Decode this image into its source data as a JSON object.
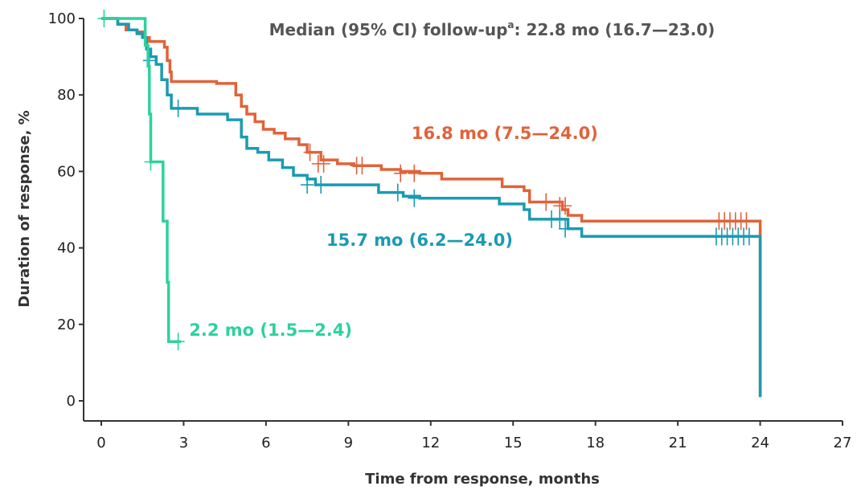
{
  "colors": {
    "background": "#ffffff",
    "axis": "#333333",
    "series_orange": "#e0633a",
    "series_teal": "#1a9bb2",
    "series_green": "#2ed19e",
    "note_text": "#555555"
  },
  "chart_data": {
    "type": "line",
    "step": true,
    "xlabel": "Time from response, months",
    "ylabel": "Duration of response, %",
    "xlim": [
      0,
      27
    ],
    "ylim": [
      0,
      100
    ],
    "x_ticks": [
      "0",
      "3",
      "6",
      "9",
      "12",
      "15",
      "18",
      "21",
      "24",
      "27"
    ],
    "y_ticks": [
      "0",
      "20",
      "40",
      "60",
      "80",
      "100"
    ],
    "grid": false,
    "note": {
      "prefix": "Median (95% CI) follow-up",
      "superscript": "a",
      "suffix": ": 22.8 mo (16.7—23.0)"
    },
    "annotations": [
      {
        "text": "16.8 mo (7.5—24.0)",
        "x": 11.3,
        "y": 68.5,
        "color": "#e0633a"
      },
      {
        "text": "15.7 mo (6.2—24.0)",
        "x": 8.2,
        "y": 40.5,
        "color": "#1a9bb2"
      },
      {
        "text": "2.2 mo (1.5—2.4)",
        "x": 3.2,
        "y": 17.0,
        "color": "#2ed19e"
      }
    ],
    "series": [
      {
        "color": "#e0633a",
        "points": [
          [
            0,
            100
          ],
          [
            0.6,
            98.5
          ],
          [
            0.9,
            97
          ],
          [
            1.3,
            96.5
          ],
          [
            1.6,
            95
          ],
          [
            1.75,
            94
          ],
          [
            2.3,
            92.5
          ],
          [
            2.4,
            89
          ],
          [
            2.5,
            86
          ],
          [
            2.55,
            83.5
          ],
          [
            3.0,
            83.5
          ],
          [
            3.5,
            83.5
          ],
          [
            4.2,
            83
          ],
          [
            4.9,
            80
          ],
          [
            5.1,
            77
          ],
          [
            5.3,
            75
          ],
          [
            5.6,
            73
          ],
          [
            5.9,
            71
          ],
          [
            6.3,
            70
          ],
          [
            6.7,
            68.5
          ],
          [
            7.2,
            67
          ],
          [
            7.5,
            65
          ],
          [
            8.0,
            63
          ],
          [
            8.6,
            62
          ],
          [
            9.2,
            61.5
          ],
          [
            9.6,
            61.5
          ],
          [
            10.2,
            60.5
          ],
          [
            10.9,
            60
          ],
          [
            11.6,
            59.5
          ],
          [
            12.4,
            58
          ],
          [
            14.5,
            58
          ],
          [
            14.6,
            56
          ],
          [
            15.4,
            55
          ],
          [
            15.6,
            52
          ],
          [
            16.2,
            52
          ],
          [
            16.8,
            50
          ],
          [
            17.0,
            48.5
          ],
          [
            17.5,
            47
          ],
          [
            24.0,
            47
          ],
          [
            24.0,
            1
          ]
        ],
        "censored": [
          [
            7.6,
            65
          ],
          [
            7.9,
            62
          ],
          [
            8.1,
            62
          ],
          [
            9.3,
            61.5
          ],
          [
            9.5,
            61.5
          ],
          [
            10.9,
            59.5
          ],
          [
            11.4,
            59.5
          ],
          [
            16.2,
            52
          ],
          [
            16.7,
            51
          ],
          [
            16.9,
            51
          ],
          [
            22.5,
            47
          ],
          [
            22.7,
            47
          ],
          [
            22.9,
            47
          ],
          [
            23.1,
            47
          ],
          [
            23.3,
            47
          ],
          [
            23.5,
            47
          ]
        ]
      },
      {
        "color": "#1a9bb2",
        "points": [
          [
            0,
            100
          ],
          [
            0.6,
            98.5
          ],
          [
            1.0,
            97
          ],
          [
            1.3,
            96
          ],
          [
            1.5,
            95
          ],
          [
            1.65,
            92
          ],
          [
            1.8,
            90
          ],
          [
            2.0,
            88
          ],
          [
            2.2,
            84
          ],
          [
            2.4,
            80
          ],
          [
            2.55,
            76.5
          ],
          [
            3.0,
            76.5
          ],
          [
            3.5,
            75
          ],
          [
            4.6,
            73.5
          ],
          [
            5.1,
            69
          ],
          [
            5.3,
            66
          ],
          [
            5.7,
            65
          ],
          [
            6.1,
            63
          ],
          [
            6.6,
            61
          ],
          [
            7.0,
            59
          ],
          [
            7.5,
            58
          ],
          [
            7.8,
            56.5
          ],
          [
            9.2,
            56.5
          ],
          [
            10.1,
            54.5
          ],
          [
            11.0,
            53.5
          ],
          [
            11.6,
            53
          ],
          [
            12.3,
            53
          ],
          [
            14.5,
            51.5
          ],
          [
            15.4,
            50
          ],
          [
            15.6,
            47.5
          ],
          [
            16.9,
            47.5
          ],
          [
            17.0,
            45
          ],
          [
            17.5,
            43
          ],
          [
            24.0,
            43
          ],
          [
            24.0,
            1
          ]
        ],
        "censored": [
          [
            1.75,
            89
          ],
          [
            2.8,
            76.5
          ],
          [
            7.5,
            56.5
          ],
          [
            8.0,
            56.5
          ],
          [
            10.8,
            54.5
          ],
          [
            11.4,
            53
          ],
          [
            16.4,
            47.5
          ],
          [
            16.7,
            47.5
          ],
          [
            16.9,
            45
          ],
          [
            22.4,
            43
          ],
          [
            22.6,
            43
          ],
          [
            22.8,
            43
          ],
          [
            23.0,
            43
          ],
          [
            23.2,
            43
          ],
          [
            23.4,
            43
          ],
          [
            23.6,
            43
          ]
        ]
      },
      {
        "color": "#2ed19e",
        "points": [
          [
            0,
            100
          ],
          [
            1.55,
            100
          ],
          [
            1.6,
            93
          ],
          [
            1.7,
            87.5
          ],
          [
            1.75,
            75
          ],
          [
            1.8,
            62.5
          ],
          [
            2.2,
            62.5
          ],
          [
            2.25,
            47
          ],
          [
            2.35,
            47
          ],
          [
            2.4,
            31
          ],
          [
            2.45,
            15.5
          ],
          [
            2.9,
            15.5
          ]
        ],
        "censored": [
          [
            0.1,
            100
          ],
          [
            1.8,
            62.5
          ],
          [
            2.8,
            15.5
          ]
        ]
      }
    ]
  }
}
